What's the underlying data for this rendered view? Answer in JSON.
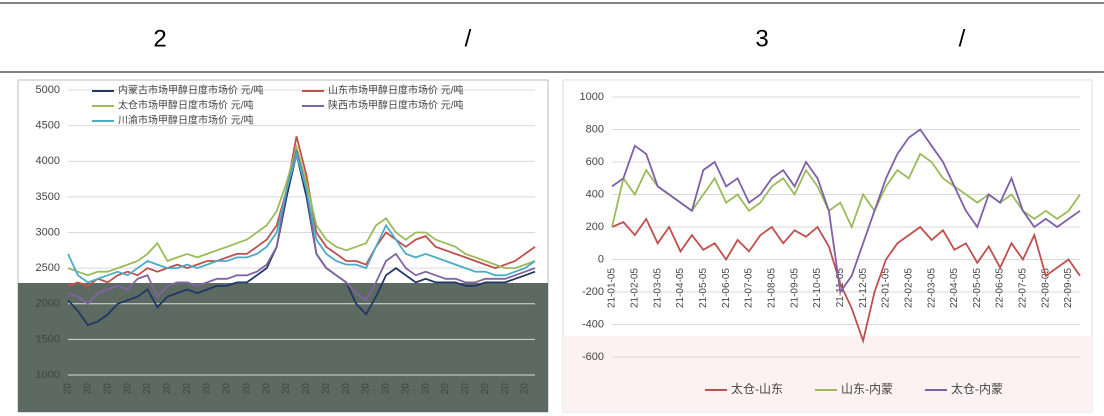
{
  "header": {
    "left_number": "2",
    "left_slash": "/",
    "right_number": "3",
    "right_slash": "/"
  },
  "chart_data": [
    {
      "type": "line",
      "categories": [
        "20",
        null,
        "20",
        null,
        "20",
        null,
        "20",
        null,
        "20",
        null,
        "20",
        null,
        "20",
        null,
        "20",
        null,
        "20",
        null,
        "20",
        null,
        "20",
        null,
        "20",
        null,
        "20",
        null,
        "20",
        null,
        "20",
        null,
        "20",
        null,
        "20",
        null,
        "20",
        null,
        "20",
        null,
        "20",
        null,
        "20",
        null,
        "20",
        null,
        "20",
        null,
        "20",
        null
      ],
      "ylim": [
        1000,
        5000
      ],
      "yticks": [
        1000,
        1500,
        2000,
        2500,
        3000,
        3500,
        4000,
        4500,
        5000
      ],
      "grid": true,
      "series": [
        {
          "name": "内蒙古市场甲醇日度市场价 元/吨",
          "color": "#1f3864",
          "values": [
            2050,
            1900,
            1700,
            1750,
            1850,
            2000,
            2050,
            2100,
            2200,
            1950,
            2100,
            2150,
            2200,
            2150,
            2200,
            2250,
            2250,
            2300,
            2300,
            2400,
            2500,
            2800,
            3500,
            4100,
            3500,
            2700,
            2500,
            2400,
            2300,
            2000,
            1850,
            2100,
            2400,
            2500,
            2400,
            2300,
            2350,
            2300,
            2300,
            2300,
            2250,
            2250,
            2300,
            2300,
            2300,
            2350,
            2400,
            2450
          ]
        },
        {
          "name": "山东市场甲醇日度市场价 元/吨",
          "color": "#c0504d",
          "values": [
            2250,
            2300,
            2250,
            2350,
            2300,
            2400,
            2450,
            2400,
            2500,
            2450,
            2500,
            2550,
            2500,
            2550,
            2600,
            2600,
            2650,
            2700,
            2700,
            2800,
            2900,
            3100,
            3600,
            4350,
            3800,
            3000,
            2800,
            2700,
            2600,
            2600,
            2550,
            2800,
            3000,
            2900,
            2800,
            2900,
            2950,
            2800,
            2750,
            2700,
            2650,
            2600,
            2550,
            2500,
            2550,
            2600,
            2700,
            2800
          ]
        },
        {
          "name": "太仓市场甲醇日度市场价 元/吨",
          "color": "#9bbb59",
          "values": [
            2500,
            2450,
            2400,
            2450,
            2450,
            2500,
            2550,
            2600,
            2700,
            2850,
            2600,
            2650,
            2700,
            2650,
            2700,
            2750,
            2800,
            2850,
            2900,
            3000,
            3100,
            3300,
            3700,
            4200,
            3700,
            3100,
            2900,
            2800,
            2750,
            2800,
            2850,
            3100,
            3200,
            3000,
            2900,
            3000,
            3000,
            2900,
            2850,
            2800,
            2700,
            2650,
            2600,
            2550,
            2500,
            2500,
            2550,
            2600
          ]
        },
        {
          "name": "陕西市场甲醇日度市场价 元/吨",
          "color": "#8064a2",
          "values": [
            2150,
            2100,
            2000,
            2150,
            2200,
            2250,
            2200,
            2350,
            2400,
            2100,
            2250,
            2300,
            2300,
            2250,
            2300,
            2350,
            2350,
            2400,
            2400,
            2450,
            2550,
            2800,
            3600,
            4150,
            3600,
            2700,
            2500,
            2400,
            2300,
            2150,
            2050,
            2300,
            2600,
            2700,
            2500,
            2400,
            2450,
            2400,
            2350,
            2350,
            2300,
            2300,
            2350,
            2350,
            2350,
            2400,
            2450,
            2500
          ]
        },
        {
          "name": "川渝市场甲醇日度市场价 元/吨",
          "color": "#4bacc6",
          "values": [
            2700,
            2400,
            2300,
            2350,
            2400,
            2450,
            2400,
            2500,
            2600,
            2550,
            2500,
            2500,
            2550,
            2500,
            2550,
            2600,
            2600,
            2650,
            2650,
            2700,
            2800,
            3000,
            3600,
            4100,
            3600,
            2900,
            2700,
            2600,
            2550,
            2550,
            2500,
            2800,
            3100,
            2900,
            2700,
            2650,
            2700,
            2650,
            2600,
            2550,
            2500,
            2450,
            2450,
            2400,
            2400,
            2450,
            2500,
            2600
          ]
        }
      ]
    },
    {
      "type": "line",
      "categories": [
        "21-01-05",
        null,
        "21-02-05",
        null,
        "21-03-05",
        null,
        "21-04-05",
        null,
        "21-05-05",
        null,
        "21-06-05",
        null,
        "21-07-05",
        null,
        "21-08-05",
        null,
        "21-09-05",
        null,
        "21-10-05",
        null,
        "21-11-05",
        null,
        "21-12-05",
        null,
        "22-01-05",
        null,
        "22-02-05",
        null,
        "22-03-05",
        null,
        "22-04-05",
        null,
        "22-05-05",
        null,
        "22-06-05",
        null,
        "22-07-05",
        null,
        "22-08-05",
        null,
        "22-09-05",
        null
      ],
      "ylim": [
        -600,
        1000
      ],
      "yticks": [
        -600,
        -400,
        -200,
        0,
        200,
        400,
        600,
        800,
        1000
      ],
      "grid": true,
      "series": [
        {
          "name": "太仓-山东",
          "color": "#c0504d",
          "values": [
            200,
            230,
            150,
            250,
            100,
            200,
            50,
            150,
            60,
            100,
            0,
            120,
            50,
            150,
            200,
            100,
            180,
            140,
            200,
            80,
            -150,
            -300,
            -500,
            -200,
            0,
            100,
            150,
            200,
            120,
            180,
            60,
            100,
            -20,
            80,
            -50,
            100,
            0,
            150,
            -100,
            -50,
            0,
            -100
          ]
        },
        {
          "name": "山东-内蒙",
          "color": "#9bbb59",
          "values": [
            200,
            500,
            400,
            550,
            450,
            400,
            350,
            300,
            400,
            500,
            350,
            400,
            300,
            350,
            450,
            500,
            400,
            550,
            450,
            300,
            350,
            200,
            400,
            300,
            450,
            550,
            500,
            650,
            600,
            500,
            450,
            400,
            350,
            400,
            350,
            400,
            300,
            250,
            300,
            250,
            300,
            400
          ]
        },
        {
          "name": "太仓-内蒙",
          "color": "#7f5fa8",
          "values": [
            450,
            500,
            700,
            650,
            450,
            400,
            350,
            300,
            550,
            600,
            450,
            500,
            350,
            400,
            500,
            550,
            450,
            600,
            500,
            300,
            -200,
            -100,
            100,
            300,
            500,
            650,
            750,
            800,
            700,
            600,
            450,
            300,
            200,
            400,
            350,
            500,
            300,
            200,
            250,
            200,
            250,
            300
          ]
        }
      ]
    }
  ]
}
